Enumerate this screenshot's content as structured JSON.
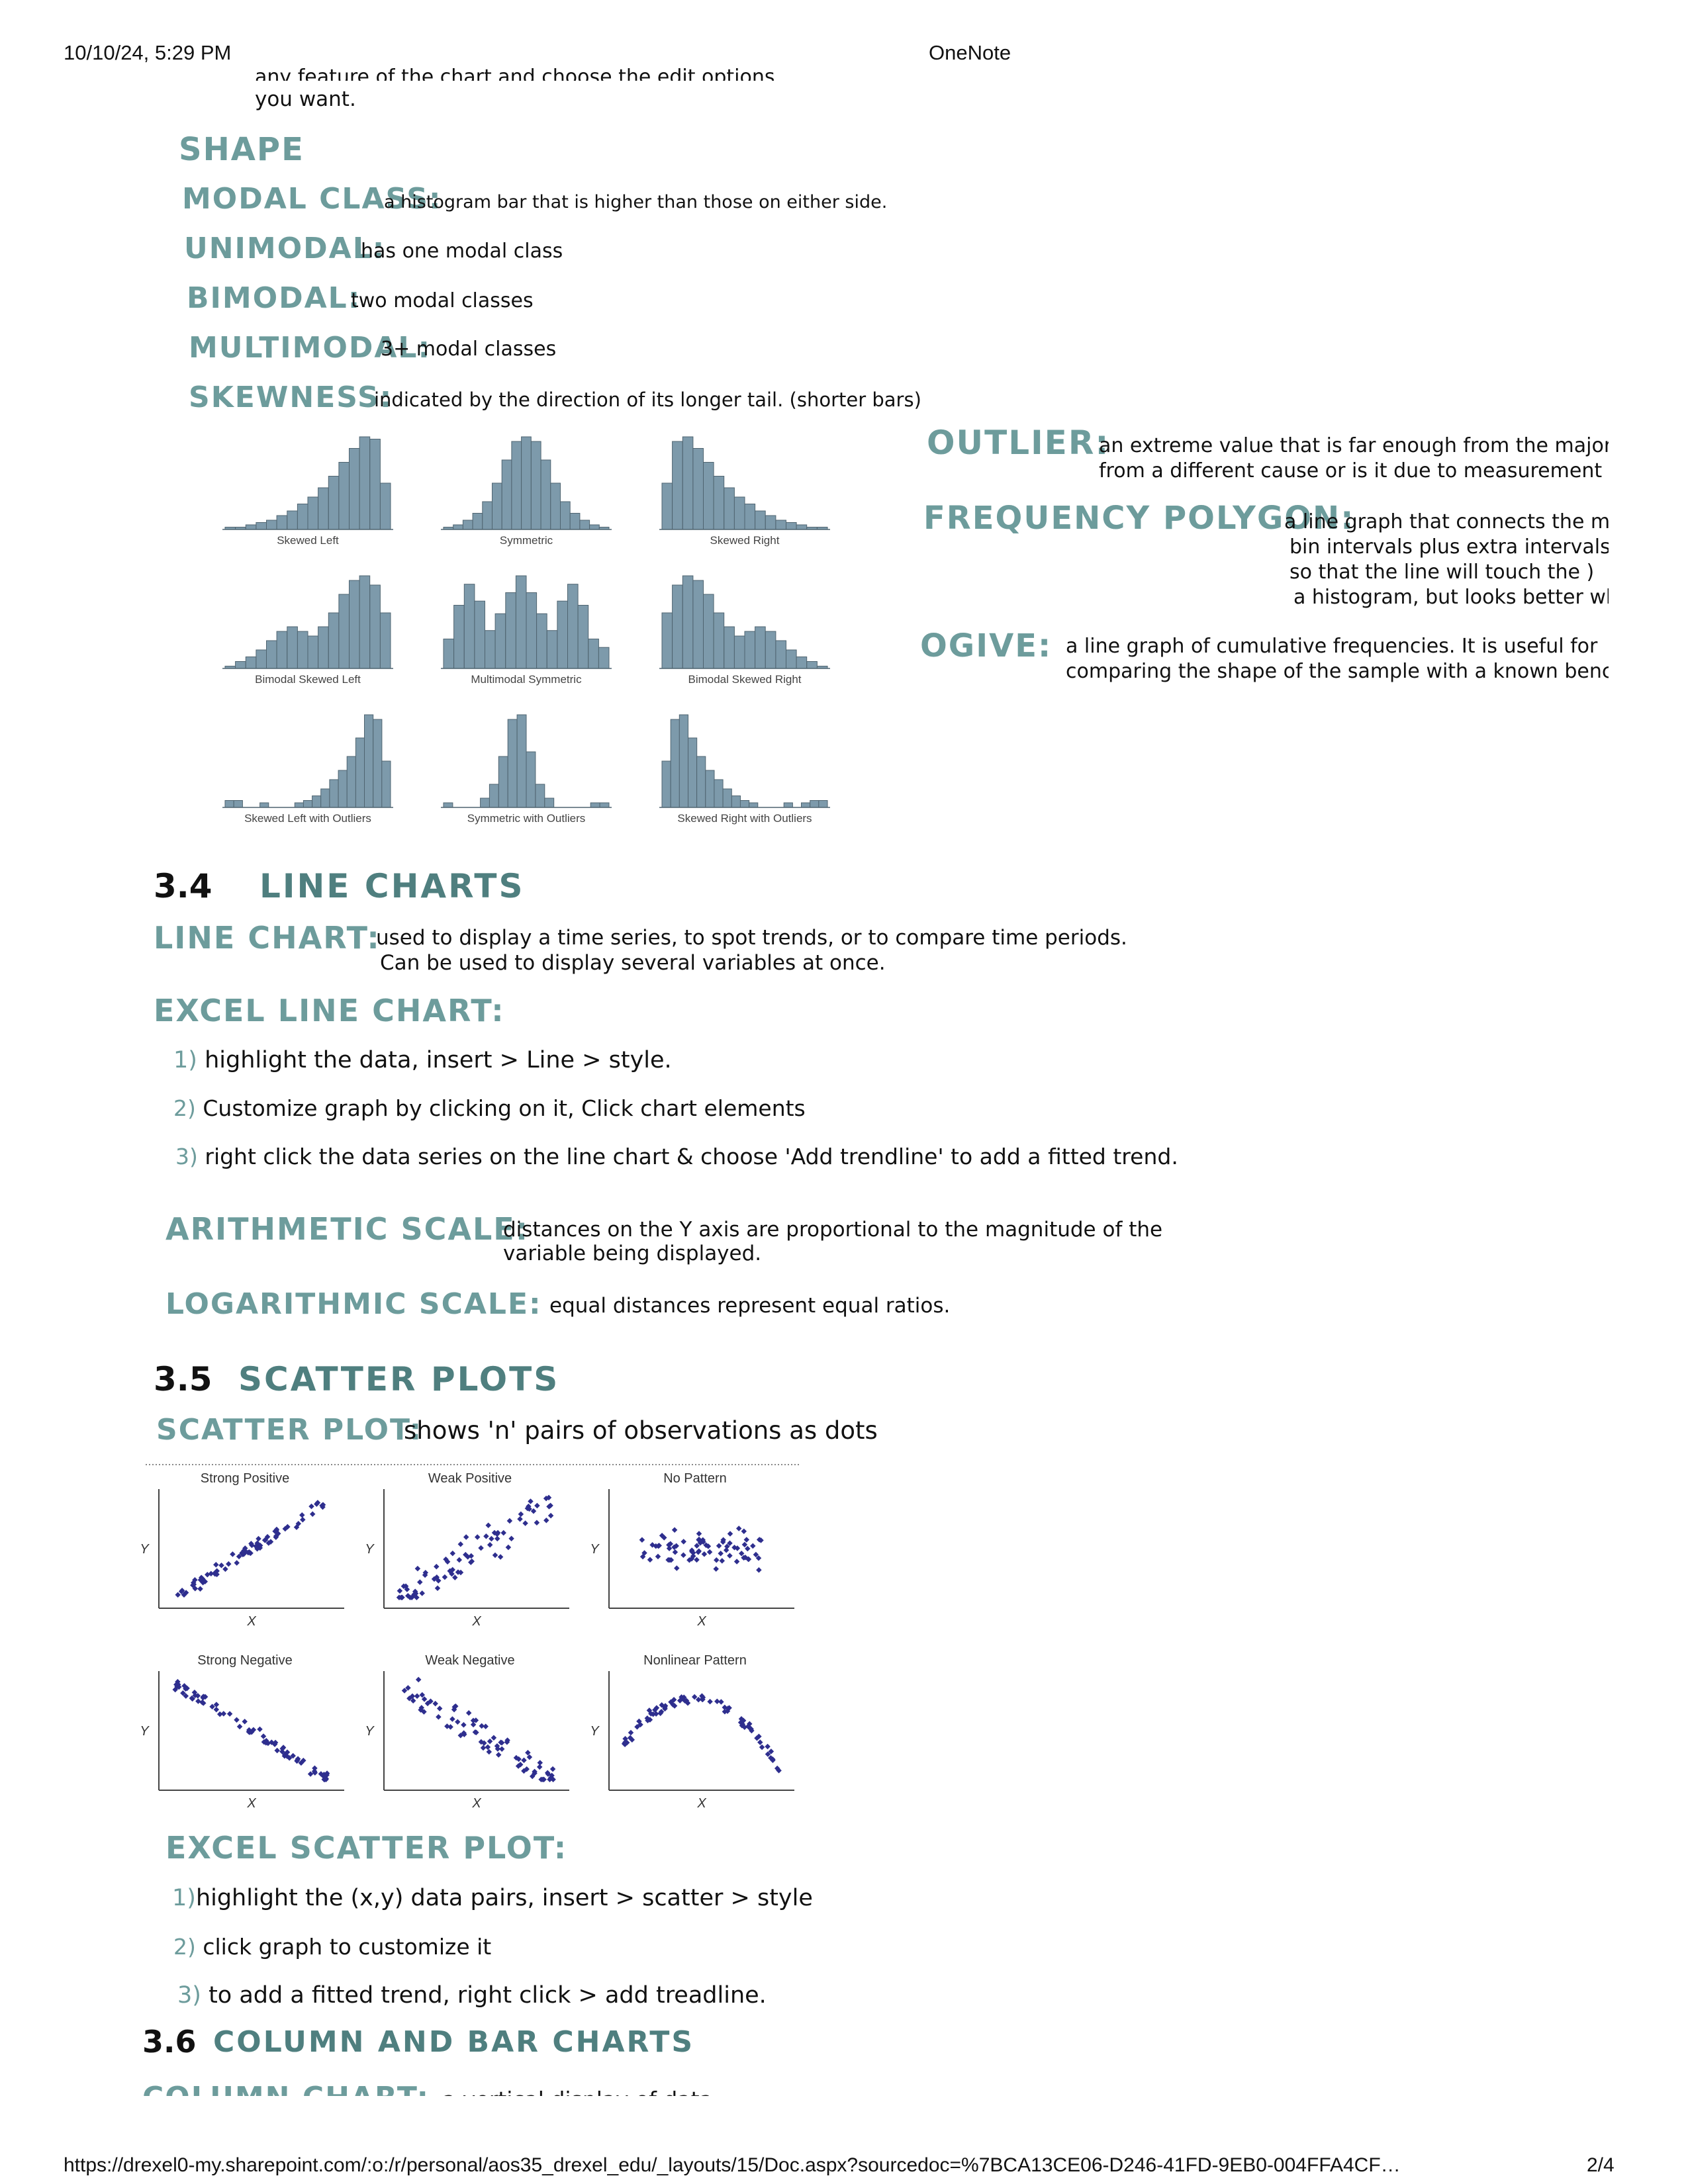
{
  "header": {
    "datetime": "10/10/24, 5:29 PM",
    "app": "OneNote"
  },
  "footer": {
    "url": "https://drexel0-my.sharepoint.com/:o:/r/personal/aos35_drexel_edu/_layouts/15/Doc.aspx?sourcedoc=%7BCA13CE06-D246-41FD-9EB0-004FFA4CF…",
    "page": "2/4"
  },
  "top_fragment": {
    "line1": "any feature of the chart and choose the edit options",
    "line2": "you want."
  },
  "shape": {
    "title": "SHAPE",
    "terms": [
      {
        "term": "MODAL CLASS:",
        "def": "a histogram bar that is higher than those on either side."
      },
      {
        "term": "UNIMODAL:",
        "def": "has one modal class"
      },
      {
        "term": "BIMODAL:",
        "def": "two modal classes"
      },
      {
        "term": "MULTIMODAL:",
        "def": "3+ modal classes"
      },
      {
        "term": "SKEWNESS:",
        "def": "indicated by the direction of its longer tail. (shorter bars)"
      }
    ]
  },
  "right_terms": {
    "outlier": {
      "term": "OUTLIER:",
      "line1": "an extreme value that is far enough from the majority",
      "line2": "from a different cause or is it due to measurement error"
    },
    "freq_polygon": {
      "term": "FREQUENCY POLYGON:",
      "line1": "a line graph that connects the m",
      "line2": "bin intervals plus extra intervals",
      "line3": "so that the line will touch the )",
      "line4": "a histogram, but looks better when"
    },
    "ogive": {
      "term": "OGIVE:",
      "line1": "a line graph of cumulative frequencies. It is useful for",
      "line2": "comparing the shape of the sample with a known benchm"
    }
  },
  "histograms": {
    "color": "#7d9aab",
    "items": [
      {
        "label": "Skewed Left",
        "values": [
          1,
          1,
          2,
          3,
          4,
          6,
          8,
          11,
          14,
          18,
          23,
          29,
          35,
          40,
          39,
          20
        ]
      },
      {
        "label": "Symmetric",
        "values": [
          1,
          2,
          4,
          7,
          12,
          20,
          30,
          38,
          40,
          38,
          30,
          20,
          12,
          7,
          4,
          2,
          1
        ]
      },
      {
        "label": "Skewed Right",
        "values": [
          20,
          38,
          40,
          35,
          29,
          23,
          18,
          14,
          11,
          8,
          6,
          4,
          3,
          2,
          1,
          1
        ]
      },
      {
        "label": "Bimodal Skewed Left",
        "values": [
          1,
          3,
          5,
          8,
          12,
          16,
          18,
          16,
          14,
          18,
          24,
          32,
          38,
          40,
          36,
          24
        ]
      },
      {
        "label": "Multimodal Symmetric",
        "values": [
          14,
          30,
          40,
          32,
          18,
          26,
          36,
          44,
          36,
          26,
          18,
          32,
          40,
          30,
          14,
          10
        ]
      },
      {
        "label": "Bimodal Skewed Right",
        "values": [
          24,
          36,
          40,
          38,
          32,
          24,
          18,
          14,
          16,
          18,
          16,
          12,
          8,
          5,
          3,
          1
        ]
      },
      {
        "label": "Skewed Left with Outliers",
        "values": [
          3,
          3,
          0,
          0,
          2,
          0,
          0,
          0,
          2,
          3,
          5,
          8,
          12,
          16,
          22,
          30,
          40,
          38,
          20
        ]
      },
      {
        "label": "Symmetric with Outliers",
        "values": [
          2,
          0,
          0,
          0,
          4,
          10,
          22,
          38,
          40,
          24,
          10,
          4,
          0,
          0,
          0,
          0,
          2,
          2
        ]
      },
      {
        "label": "Skewed Right with Outliers",
        "values": [
          20,
          38,
          40,
          30,
          22,
          16,
          12,
          8,
          5,
          3,
          2,
          0,
          0,
          0,
          2,
          0,
          2,
          3,
          3
        ]
      }
    ]
  },
  "line_charts": {
    "number": "3.4",
    "title": "LINE CHARTS",
    "line_chart": {
      "term": "LINE CHART:",
      "line1": "used to display a time series, to spot trends, or to compare time periods.",
      "line2": "Can be used to display several variables at once."
    },
    "excel": {
      "term": "EXCEL LINE CHART:",
      "steps": [
        {
          "n": "1)",
          "text": "highlight the data, insert > Line > style."
        },
        {
          "n": "2)",
          "text": "Customize graph by clicking on it, Click chart elements"
        },
        {
          "n": "3)",
          "text": "right click the data series on the line chart & choose 'Add trendline' to add a fitted trend."
        }
      ]
    },
    "arithmetic": {
      "term": "ARITHMETIC SCALE:",
      "line1": "distances on the Y axis are proportional to the magnitude of the",
      "line2": "variable being displayed."
    },
    "logarithmic": {
      "term": "LOGARITHMIC SCALE:",
      "def": "equal distances represent equal ratios."
    }
  },
  "scatter": {
    "number": "3.5",
    "title": "SCATTER PLOTS",
    "scatter_plot": {
      "term": "SCATTER PLOT:",
      "def": "shows 'n' pairs of observations as dots"
    },
    "dot_color": "#2e2e8e",
    "plots": [
      {
        "title": "Strong Positive",
        "xlabel": "X",
        "ylabel": "Y"
      },
      {
        "title": "Weak Positive",
        "xlabel": "X",
        "ylabel": "Y"
      },
      {
        "title": "No Pattern",
        "xlabel": "X",
        "ylabel": "Y"
      },
      {
        "title": "Strong Negative",
        "xlabel": "X",
        "ylabel": "Y"
      },
      {
        "title": "Weak Negative",
        "xlabel": "X",
        "ylabel": "Y"
      },
      {
        "title": "Nonlinear Pattern",
        "xlabel": "X",
        "ylabel": "Y"
      }
    ],
    "excel": {
      "term": "EXCEL SCATTER PLOT:",
      "steps": [
        {
          "n": "1)",
          "text": "highlight the (x,y) data pairs, insert > scatter > style"
        },
        {
          "n": "2)",
          "text": "click graph to customize it"
        },
        {
          "n": "3)",
          "text": "to add a fitted trend, right click > add treadline."
        }
      ]
    }
  },
  "column_bar": {
    "number": "3.6",
    "title": "COLUMN AND BAR CHARTS",
    "column_chart": {
      "term": "COLUMN CHART:",
      "def": "a vertical display of data"
    }
  }
}
